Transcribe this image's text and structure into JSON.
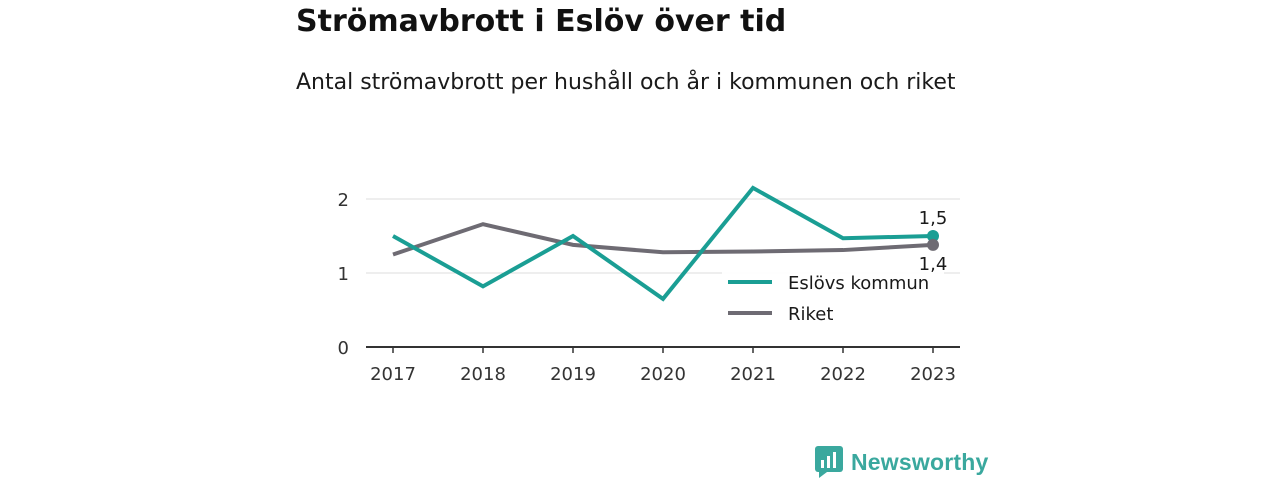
{
  "header": {
    "title": "Strömavbrott i Eslöv över tid",
    "subtitle": "Antal strömavbrott per hushåll och år i kommunen och riket"
  },
  "brand": {
    "name": "Newsworthy",
    "color": "#3aa89e",
    "icon": "bar-chart-bubble-icon"
  },
  "chart_data": {
    "type": "line",
    "x": [
      "2017",
      "2018",
      "2019",
      "2020",
      "2021",
      "2022",
      "2023"
    ],
    "ylim": [
      0,
      2.2
    ],
    "yticks": [
      0,
      1,
      2
    ],
    "grid": true,
    "legend_position": "bottom-right",
    "series": [
      {
        "name": "Eslövs kommun",
        "color": "#1a9e94",
        "values": [
          1.5,
          0.82,
          1.5,
          0.65,
          2.15,
          1.47,
          1.5
        ],
        "end_label": "1,5"
      },
      {
        "name": "Riket",
        "color": "#6e6b73",
        "values": [
          1.25,
          1.66,
          1.38,
          1.28,
          1.29,
          1.31,
          1.38
        ],
        "end_label": "1,4"
      }
    ]
  }
}
